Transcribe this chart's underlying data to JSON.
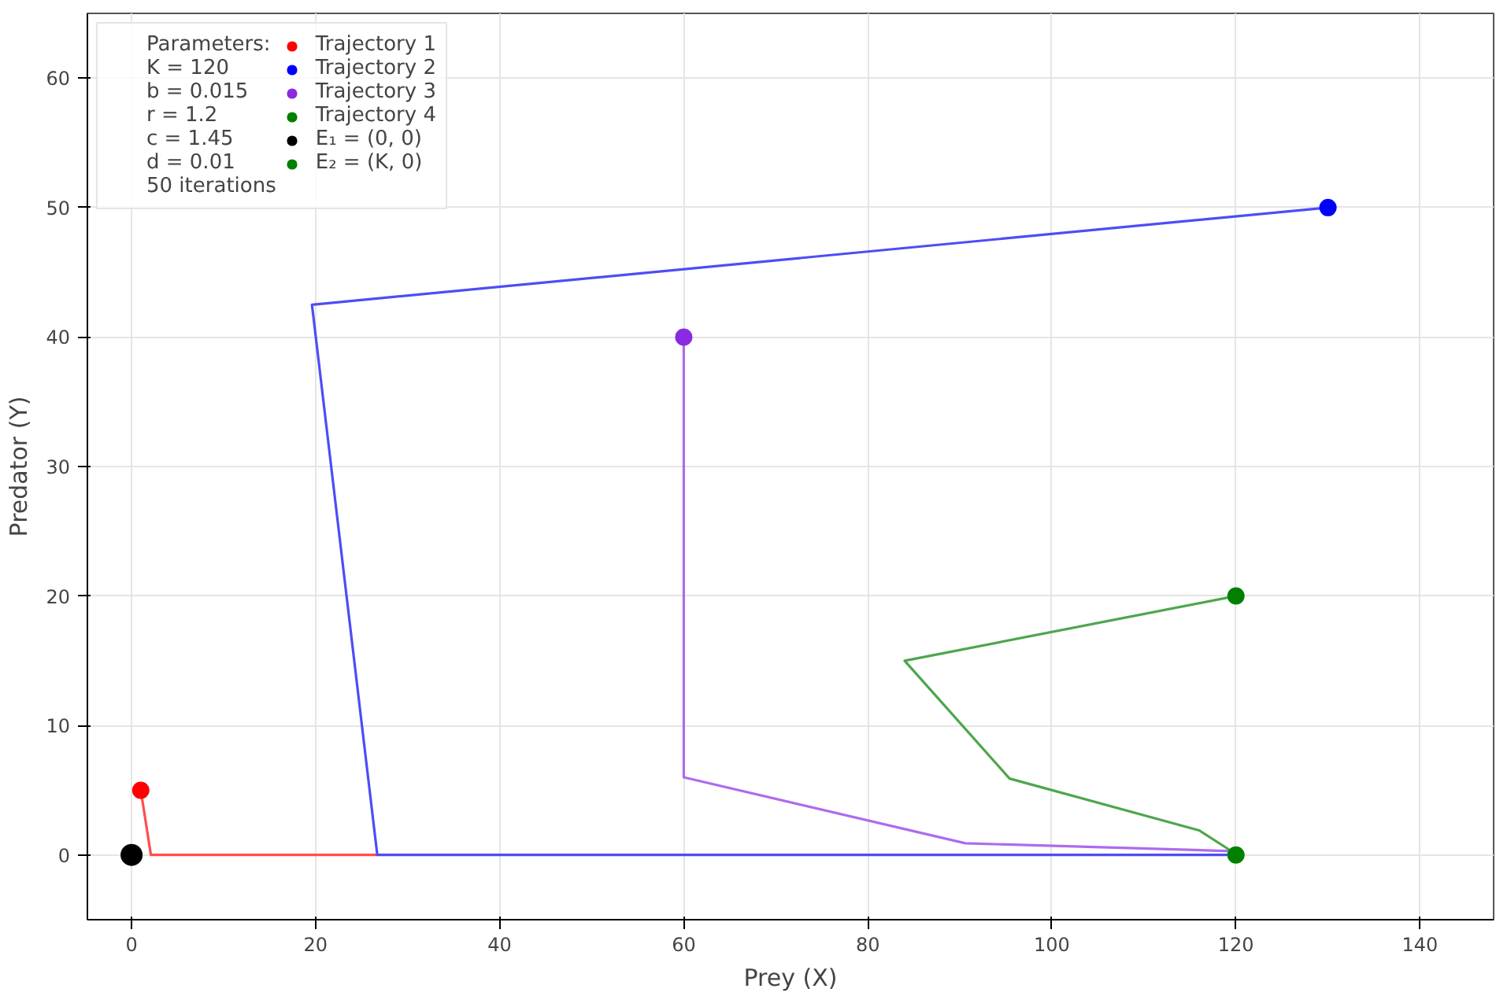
{
  "chart_data": {
    "type": "line",
    "xlabel": "Prey (X)",
    "ylabel": "Predator (Y)",
    "xlim": [
      -4.8,
      148
    ],
    "ylim": [
      -5,
      65
    ],
    "xticks": [
      0,
      20,
      40,
      60,
      80,
      100,
      120,
      140
    ],
    "yticks": [
      0,
      10,
      20,
      30,
      40,
      50,
      60
    ],
    "grid": true,
    "legend": "top left",
    "legend_title": "Parameters:",
    "annotations": [
      "K = 120",
      "b = 0.015",
      "r = 1.2",
      "c = 1.45",
      "d = 0.01",
      "50 iterations"
    ],
    "series": [
      {
        "color": "#ff4d4d",
        "x": [
          1,
          2.1,
          26.7
        ],
        "values": [
          5,
          0,
          0
        ]
      },
      {
        "color": "#4d4df5",
        "x": [
          130,
          19.6,
          26.7,
          120
        ],
        "values": [
          50,
          42.5,
          0,
          0
        ]
      },
      {
        "color": "#ad6bee",
        "x": [
          60,
          60,
          90.6,
          119.5,
          120
        ],
        "values": [
          40,
          6,
          0.9,
          0.3,
          0
        ]
      },
      {
        "color": "#4da64d",
        "x": [
          120,
          84,
          95.4,
          116,
          119.5,
          120
        ],
        "values": [
          20,
          15,
          5.9,
          1.9,
          0.3,
          0
        ]
      },
      {
        "type": "scatter",
        "name": "Trajectory 1",
        "color": "#ff0000",
        "marker": "circle",
        "x": [
          1
        ],
        "values": [
          5
        ]
      },
      {
        "type": "scatter",
        "name": "Trajectory 2",
        "color": "#0000ff",
        "marker": "circle",
        "x": [
          130
        ],
        "values": [
          50
        ]
      },
      {
        "type": "scatter",
        "name": "Trajectory 3",
        "color": "#8a2be2",
        "marker": "circle",
        "x": [
          60
        ],
        "values": [
          40
        ]
      },
      {
        "type": "scatter",
        "name": "Trajectory 4",
        "color": "#008000",
        "marker": "circle",
        "x": [
          120
        ],
        "values": [
          20
        ]
      },
      {
        "type": "scatter",
        "name": "E₁ = (0, 0)",
        "color": "#000000",
        "marker": "circle",
        "x": [
          0
        ],
        "values": [
          0
        ]
      },
      {
        "type": "scatter",
        "name": "E₂ = (K, 0)",
        "color": "#008000",
        "marker": "circle",
        "x": [
          120
        ],
        "values": [
          0
        ]
      }
    ]
  }
}
